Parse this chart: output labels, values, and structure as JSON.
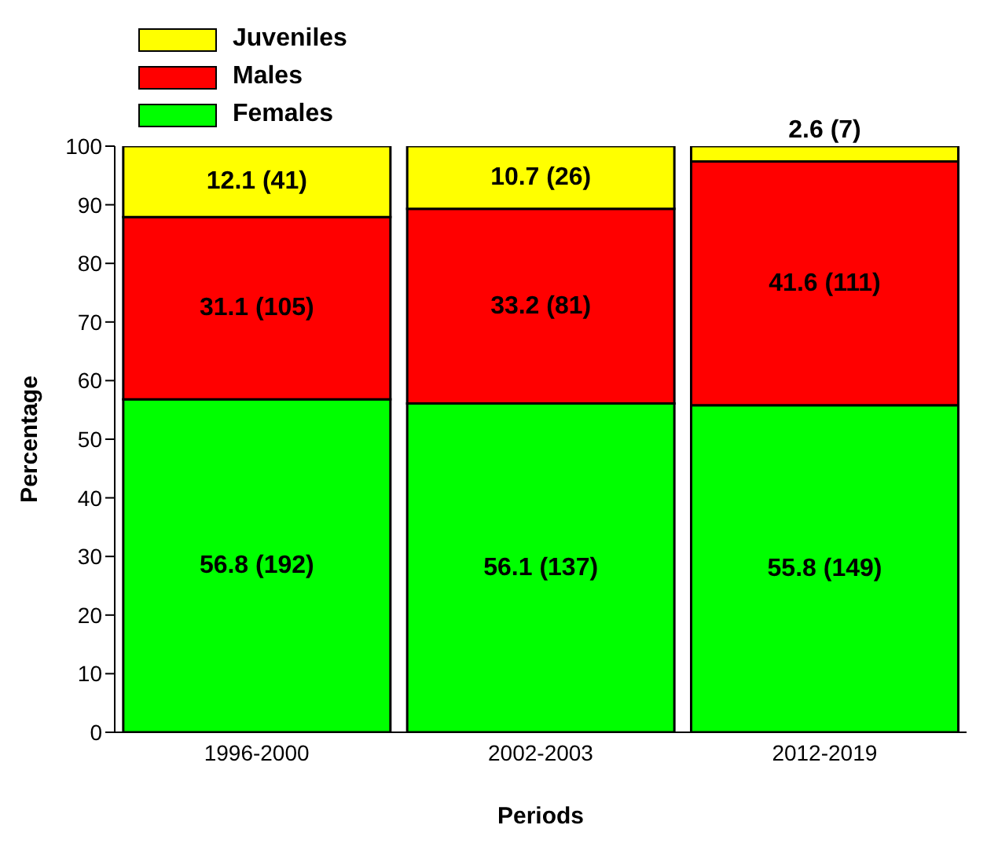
{
  "chart_data": {
    "type": "bar",
    "stacked": true,
    "xlabel": "Periods",
    "ylabel": "Percentage",
    "categories": [
      "1996-2000",
      "2002-2003",
      "2012-2019"
    ],
    "series": [
      {
        "name": "Females",
        "color": "#00ff00",
        "values": [
          56.8,
          56.1,
          55.8
        ],
        "value_labels": [
          "56.8 (192)",
          "56.1 (137)",
          "55.8 (149)"
        ]
      },
      {
        "name": "Males",
        "color": "#ff0000",
        "values": [
          31.1,
          33.2,
          41.6
        ],
        "value_labels": [
          "31.1 (105)",
          "33.2 (81)",
          "41.6 (111)"
        ]
      },
      {
        "name": "Juveniles",
        "color": "#ffff00",
        "values": [
          12.1,
          10.7,
          2.6
        ],
        "value_labels": [
          "12.1 (41)",
          "10.7 (26)",
          "2.6 (7)"
        ]
      }
    ],
    "ylim": [
      0,
      100
    ],
    "yticks": [
      0,
      10,
      20,
      30,
      40,
      50,
      60,
      70,
      80,
      90,
      100
    ],
    "grid": false,
    "legend": "top left"
  }
}
